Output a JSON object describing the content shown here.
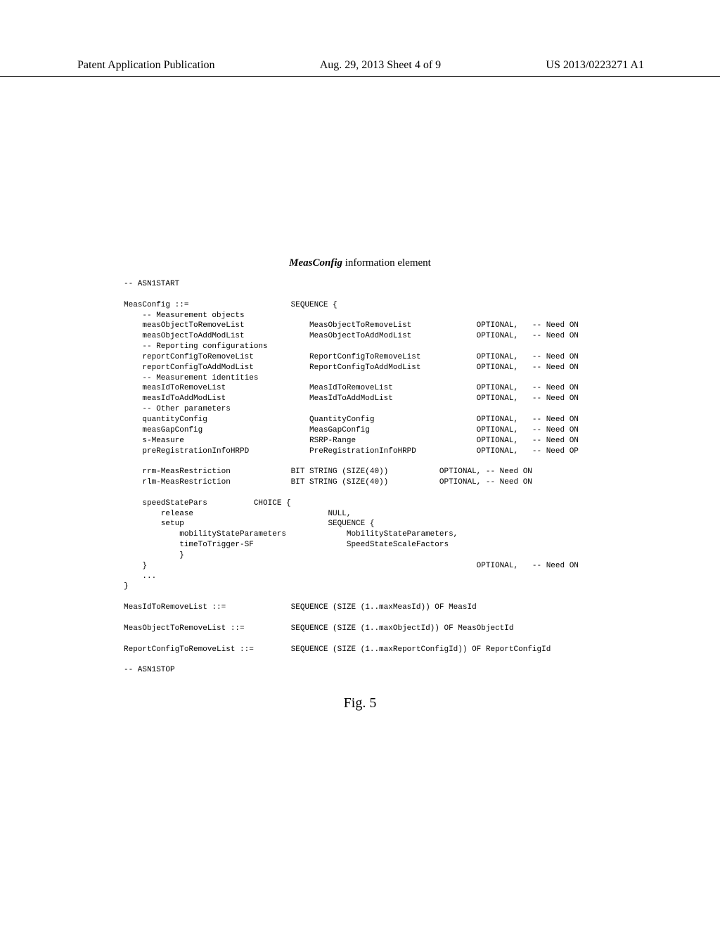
{
  "header": {
    "left": "Patent Application Publication",
    "center": "Aug. 29, 2013  Sheet 4 of 9",
    "right": "US 2013/0223271 A1"
  },
  "title": {
    "italic": "MeasConfig",
    "rest": " information element"
  },
  "asn": {
    "l01": "-- ASN1START",
    "l02": "",
    "l03": "MeasConfig ::=                      SEQUENCE {",
    "l04": "    -- Measurement objects",
    "l05": "    measObjectToRemoveList              MeasObjectToRemoveList              OPTIONAL,   -- Need ON",
    "l06": "    measObjectToAddModList              MeasObjectToAddModList              OPTIONAL,   -- Need ON",
    "l07": "    -- Reporting configurations",
    "l08": "    reportConfigToRemoveList            ReportConfigToRemoveList            OPTIONAL,   -- Need ON",
    "l09": "    reportConfigToAddModList            ReportConfigToAddModList            OPTIONAL,   -- Need ON",
    "l10": "    -- Measurement identities",
    "l11": "    measIdToRemoveList                  MeasIdToRemoveList                  OPTIONAL,   -- Need ON",
    "l12": "    measIdToAddModList                  MeasIdToAddModList                  OPTIONAL,   -- Need ON",
    "l13": "    -- Other parameters",
    "l14": "    quantityConfig                      QuantityConfig                      OPTIONAL,   -- Need ON",
    "l15": "    measGapConfig                       MeasGapConfig                       OPTIONAL,   -- Need ON",
    "l16": "    s-Measure                           RSRP-Range                          OPTIONAL,   -- Need ON",
    "l17": "    preRegistrationInfoHRPD             PreRegistrationInfoHRPD             OPTIONAL,   -- Need OP",
    "l18": "",
    "l19": "    rrm-MeasRestriction             BIT STRING (SIZE(40))           OPTIONAL, -- Need ON",
    "l20": "    rlm-MeasRestriction             BIT STRING (SIZE(40))           OPTIONAL, -- Need ON",
    "l21": "",
    "l22": "    speedStatePars          CHOICE {",
    "l23": "        release                             NULL,",
    "l24": "        setup                               SEQUENCE {",
    "l25": "            mobilityStateParameters             MobilityStateParameters,",
    "l26": "            timeToTrigger-SF                    SpeedStateScaleFactors",
    "l27": "            }",
    "l28": "    }                                                                       OPTIONAL,   -- Need ON",
    "l29": "    ...",
    "l30": "}",
    "l31": "",
    "l32": "MeasIdToRemoveList ::=              SEQUENCE (SIZE (1..maxMeasId)) OF MeasId",
    "l33": "",
    "l34": "MeasObjectToRemoveList ::=          SEQUENCE (SIZE (1..maxObjectId)) OF MeasObjectId",
    "l35": "",
    "l36": "ReportConfigToRemoveList ::=        SEQUENCE (SIZE (1..maxReportConfigId)) OF ReportConfigId",
    "l37": "",
    "l38": "-- ASN1STOP"
  },
  "figcaption": "Fig. 5"
}
